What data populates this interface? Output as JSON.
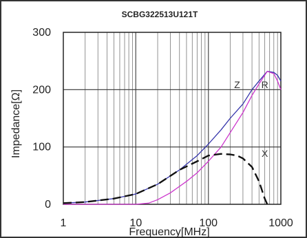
{
  "chart_data": {
    "type": "line",
    "title": "SCBG322513U121T",
    "xlabel": "Frequency[MHz]",
    "ylabel": "Impedance[Ω]",
    "x_scale": "log",
    "xlim": [
      1,
      1000
    ],
    "ylim": [
      0,
      300
    ],
    "x_ticks": [
      "1",
      "10",
      "100",
      "1000"
    ],
    "y_ticks": [
      "0",
      "100",
      "200",
      "300"
    ],
    "grid": true,
    "series": [
      {
        "name": "Z",
        "color": "#3333aa",
        "style": "solid",
        "points": [
          [
            1,
            2
          ],
          [
            2,
            4
          ],
          [
            5,
            10
          ],
          [
            10,
            18
          ],
          [
            20,
            35
          ],
          [
            40,
            60
          ],
          [
            70,
            85
          ],
          [
            100,
            105
          ],
          [
            150,
            130
          ],
          [
            200,
            150
          ],
          [
            300,
            175
          ],
          [
            400,
            200
          ],
          [
            500,
            215
          ],
          [
            650,
            232
          ],
          [
            800,
            230
          ],
          [
            900,
            225
          ],
          [
            1000,
            215
          ]
        ]
      },
      {
        "name": "R",
        "color": "#cc33cc",
        "style": "solid",
        "points": [
          [
            1,
            0
          ],
          [
            10,
            0
          ],
          [
            15,
            2
          ],
          [
            20,
            8
          ],
          [
            30,
            20
          ],
          [
            50,
            40
          ],
          [
            70,
            55
          ],
          [
            100,
            75
          ],
          [
            150,
            100
          ],
          [
            200,
            125
          ],
          [
            300,
            160
          ],
          [
            400,
            190
          ],
          [
            500,
            210
          ],
          [
            650,
            232
          ],
          [
            800,
            228
          ],
          [
            900,
            215
          ],
          [
            1000,
            200
          ]
        ]
      },
      {
        "name": "X",
        "color": "#111111",
        "style": "dashed",
        "points": [
          [
            1,
            2
          ],
          [
            2,
            4
          ],
          [
            5,
            10
          ],
          [
            10,
            18
          ],
          [
            20,
            35
          ],
          [
            40,
            60
          ],
          [
            70,
            75
          ],
          [
            100,
            85
          ],
          [
            150,
            88
          ],
          [
            200,
            87
          ],
          [
            250,
            85
          ],
          [
            300,
            80
          ],
          [
            400,
            65
          ],
          [
            500,
            40
          ],
          [
            600,
            10
          ],
          [
            650,
            0
          ]
        ]
      }
    ]
  }
}
